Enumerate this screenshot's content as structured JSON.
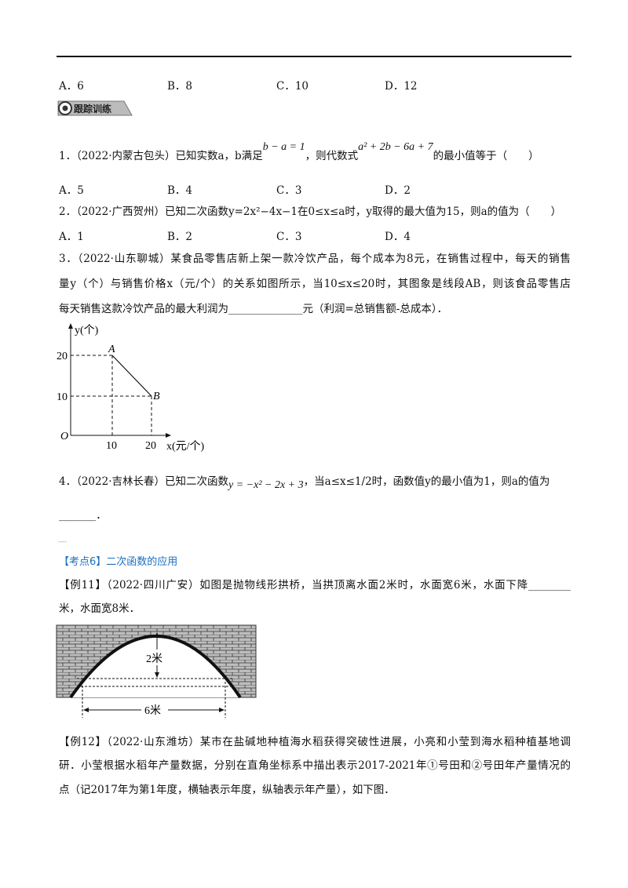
{
  "header_options": [
    "A．6",
    "B．8",
    "C．10",
    "D．12"
  ],
  "badge": "跟踪训练",
  "q1": {
    "text_a": "1．（2022·内蒙古包头）已知实数a，b满足",
    "formula1": "b − a = 1",
    "text_b": "，则代数式",
    "formula2": "a² + 2b − 6a + 7",
    "text_c": "的最小值等于（　　）",
    "options": [
      "A．5",
      "B．4",
      "C．3",
      "D．2"
    ]
  },
  "q2": {
    "text": "2．（2022·广西贺州）已知二次函数y=2x²−4x−1在0≤x≤a时，y取得的最大值为15，则a的值为（　　）",
    "options": [
      "A．1",
      "B．2",
      "C．3",
      "D．4"
    ]
  },
  "q3": {
    "lines": [
      "3．（2022·山东聊城）某食品零售店新上架一款冷饮产品，每个成本为8元，在销售过程中，每天的销售",
      "量y（个）与销售价格x（元/个）的关系如图所示，当10≤x≤20时，其图象是线段AB，则该食品零售店",
      "每天销售这款冷饮产品的最大利润为______________元（利润=总销售额-总成本）．"
    ],
    "graph": {
      "y_axis": "y(个)",
      "x_axis": "x(元/个)",
      "origin": "O",
      "point_a": "A",
      "point_b": "B",
      "y_ticks": [
        "20",
        "10"
      ],
      "x_ticks": [
        "10",
        "20"
      ]
    }
  },
  "q4": {
    "text_a": "4．（2022·吉林长春）已知二次函数",
    "formula": "y = −x² − 2x + 3",
    "text_b": "，当a≤x≤1/2时，函数值y的最小值为1，则a的值为",
    "blank": "_______．"
  },
  "mark": "----",
  "section": "【考点6】二次函数的应用",
  "ex11": {
    "lines": [
      "【例11】（2022·四川广安）如图是抛物线形拱桥，当拱顶离水面2米时，水面宽6米，水面下降________",
      "米，水面宽8米．"
    ],
    "figure": {
      "height_label": "2米",
      "width_label": "6米"
    }
  },
  "ex12": {
    "lines": [
      "【例12】（2022·山东潍坊）某市在盐碱地种植海水稻获得突破性进展，小亮和小莹到海水稻种植基地调",
      "研．小莹根据水稻年产量数据，分别在直角坐标系中描出表示2017-2021年①号田和②号田年产量情况的",
      "点（记2017年为第1年度，横轴表示年度，纵轴表示年产量），如下图．"
    ]
  }
}
